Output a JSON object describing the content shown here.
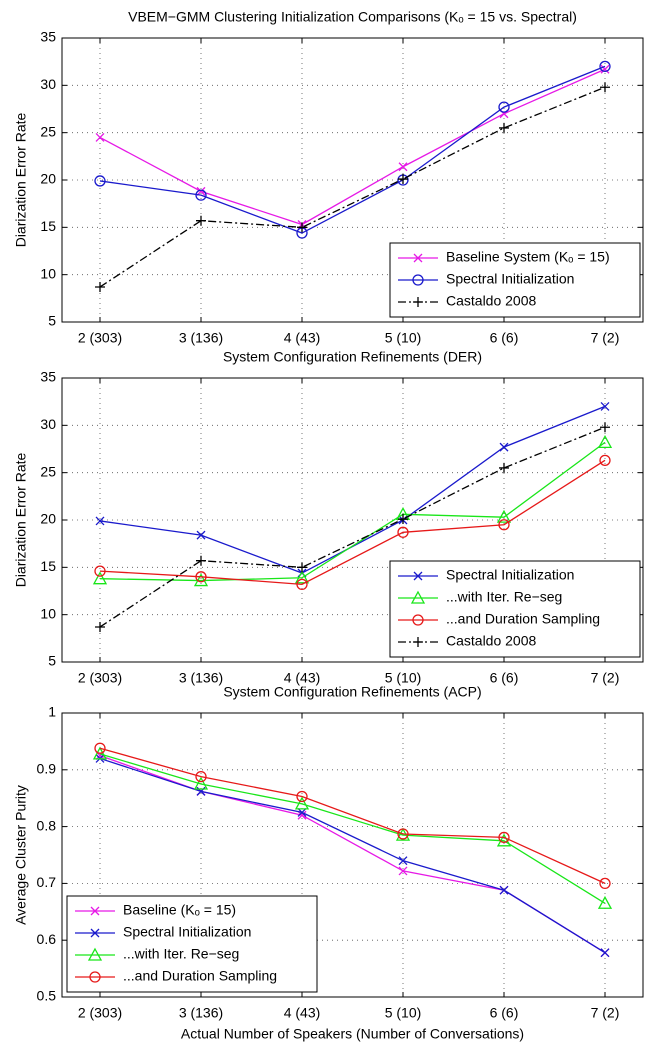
{
  "chart_data": [
    {
      "type": "line",
      "title": "VBEM−GMM Clustering Initialization Comparisons (Kₒ = 15 vs. Spectral)",
      "ylabel": "Diarization Error Rate",
      "categories": [
        "2 (303)",
        "3 (136)",
        "4 (43)",
        "5 (10)",
        "6 (6)",
        "7 (2)"
      ],
      "ylim": [
        5,
        35
      ],
      "yticks": [
        5,
        10,
        15,
        20,
        25,
        30,
        35
      ],
      "grid": true,
      "legend": "lower right",
      "series": [
        {
          "name": "Baseline System (Kₒ = 15)",
          "color": "#e619e6",
          "marker": "x",
          "dash": "solid",
          "values": [
            24.5,
            18.8,
            15.3,
            21.4,
            27.0,
            31.7
          ]
        },
        {
          "name": "Spectral Initialization",
          "color": "#1a1acc",
          "marker": "o",
          "dash": "solid",
          "values": [
            19.9,
            18.4,
            14.4,
            20.0,
            27.7,
            32.0
          ]
        },
        {
          "name": "Castaldo 2008",
          "color": "#000000",
          "marker": "+",
          "dash": "dashdot",
          "values": [
            8.7,
            15.7,
            15.0,
            20.1,
            25.5,
            29.8
          ]
        }
      ]
    },
    {
      "type": "line",
      "title": "System Configuration Refinements (DER)",
      "ylabel": "Diarization Error Rate",
      "categories": [
        "2 (303)",
        "3 (136)",
        "4 (43)",
        "5 (10)",
        "6 (6)",
        "7 (2)"
      ],
      "ylim": [
        5,
        35
      ],
      "yticks": [
        5,
        10,
        15,
        20,
        25,
        30,
        35
      ],
      "grid": true,
      "legend": "lower right",
      "series": [
        {
          "name": "Spectral Initialization",
          "color": "#1a1acc",
          "marker": "x",
          "dash": "solid",
          "values": [
            19.9,
            18.4,
            14.4,
            20.0,
            27.7,
            32.0
          ]
        },
        {
          "name": "...with Iter. Re−seg",
          "color": "#19e619",
          "marker": "^",
          "dash": "solid",
          "values": [
            13.8,
            13.6,
            13.9,
            20.6,
            20.3,
            28.2
          ]
        },
        {
          "name": "...and Duration Sampling",
          "color": "#e61919",
          "marker": "o",
          "dash": "solid",
          "values": [
            14.6,
            14.0,
            13.2,
            18.7,
            19.5,
            26.3
          ]
        },
        {
          "name": "Castaldo 2008",
          "color": "#000000",
          "marker": "+",
          "dash": "dashdot",
          "values": [
            8.7,
            15.7,
            15.0,
            20.1,
            25.5,
            29.8
          ]
        }
      ]
    },
    {
      "type": "line",
      "title": "System Configuration Refinements (ACP)",
      "ylabel": "Average Cluster Purity",
      "xlabel": "Actual Number of Speakers (Number of Conversations)",
      "categories": [
        "2 (303)",
        "3 (136)",
        "4 (43)",
        "5 (10)",
        "6 (6)",
        "7 (2)"
      ],
      "ylim": [
        0.5,
        1
      ],
      "yticks": [
        0.5,
        0.6,
        0.7,
        0.8,
        0.9,
        1
      ],
      "grid": true,
      "legend": "lower left",
      "series": [
        {
          "name": "Baseline (Kₒ = 15)",
          "color": "#e619e6",
          "marker": "x",
          "dash": "solid",
          "values": [
            0.925,
            0.862,
            0.82,
            0.722,
            0.688,
            0.578
          ]
        },
        {
          "name": "Spectral Initialization",
          "color": "#1a1acc",
          "marker": "x",
          "dash": "solid",
          "values": [
            0.92,
            0.862,
            0.825,
            0.74,
            0.688,
            0.578
          ]
        },
        {
          "name": "...with Iter. Re−seg",
          "color": "#19e619",
          "marker": "^",
          "dash": "solid",
          "values": [
            0.928,
            0.875,
            0.84,
            0.785,
            0.775,
            0.665
          ]
        },
        {
          "name": "...and Duration Sampling",
          "color": "#e61919",
          "marker": "o",
          "dash": "solid",
          "values": [
            0.938,
            0.888,
            0.853,
            0.787,
            0.781,
            0.7
          ]
        }
      ]
    }
  ]
}
